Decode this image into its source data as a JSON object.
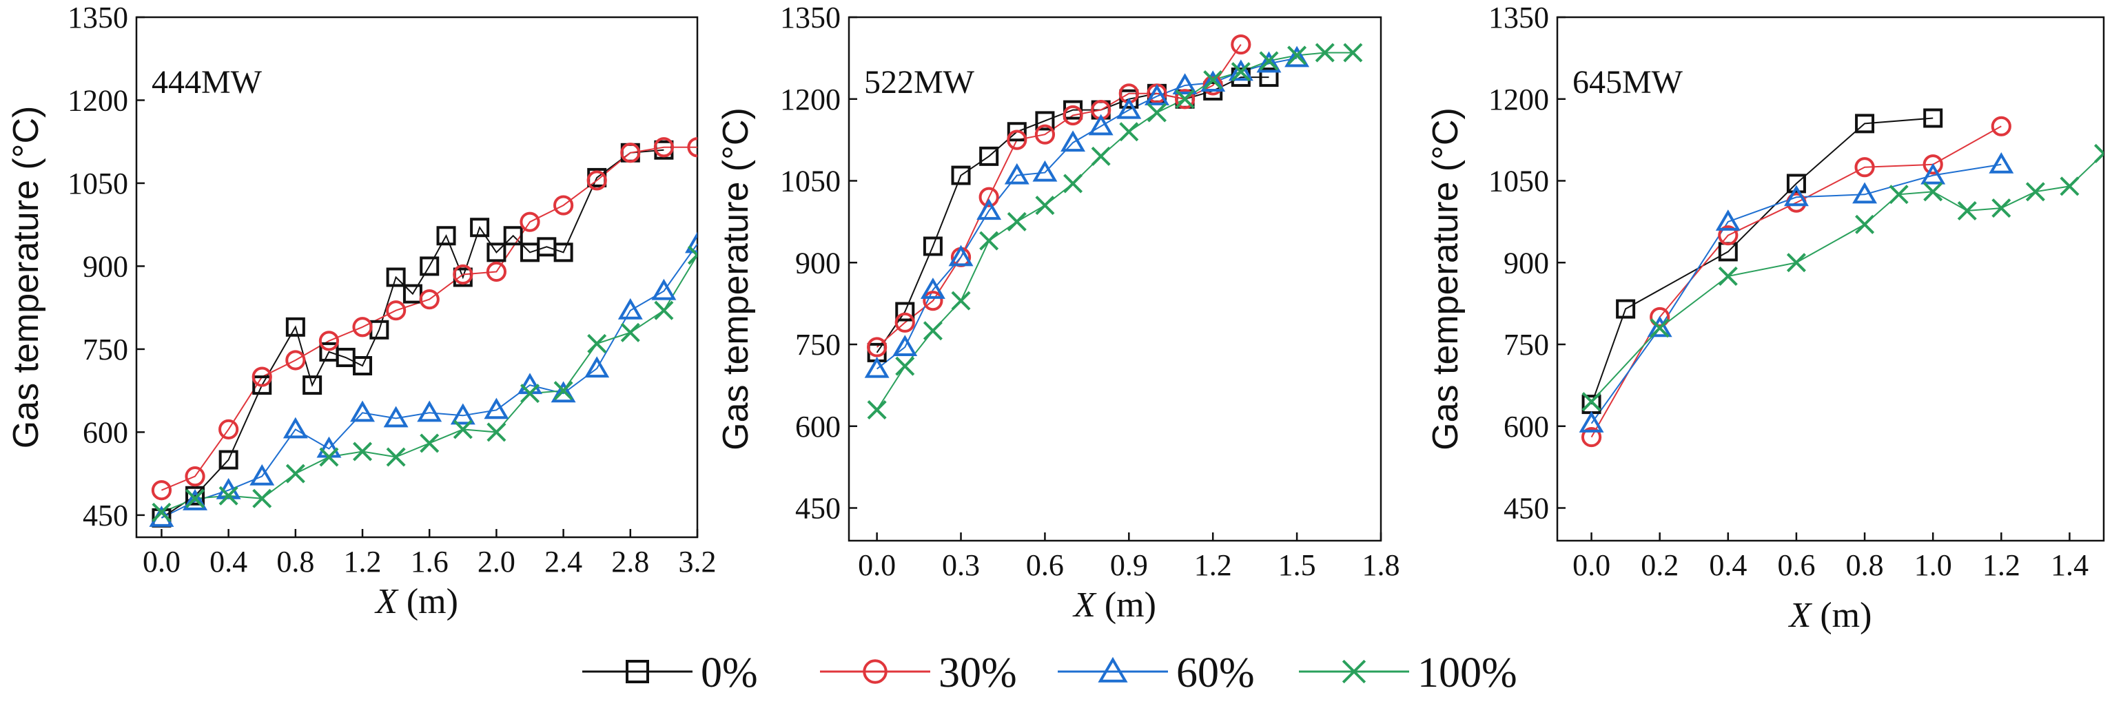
{
  "legend": [
    {
      "key": "p0",
      "label": "0%",
      "color": "#111111",
      "marker": "square-marker"
    },
    {
      "key": "p30",
      "label": "30%",
      "color": "#e0363c",
      "marker": "circle-marker"
    },
    {
      "key": "p60",
      "label": "60%",
      "color": "#1e6fd1",
      "marker": "triangle-marker"
    },
    {
      "key": "p100",
      "label": "100%",
      "color": "#2aa05c",
      "marker": "cross-marker"
    }
  ],
  "chart_data": [
    {
      "type": "line",
      "panel_label": "444MW",
      "ylabel": "Gas temperature (°C)",
      "xlabel_var": "X",
      "xlabel_unit": "(m)",
      "xlim": [
        -0.15,
        3.2
      ],
      "ylim": [
        410,
        1350
      ],
      "xticks": [
        0.0,
        0.4,
        0.8,
        1.2,
        1.6,
        2.0,
        2.4,
        2.8,
        3.2
      ],
      "xtick_labels": [
        "0.0",
        "0.4",
        "0.8",
        "1.2",
        "1.6",
        "2.0",
        "2.4",
        "2.8",
        "3.2"
      ],
      "yticks": [
        450,
        600,
        750,
        900,
        1050,
        1200,
        1350
      ],
      "ytick_labels": [
        "450",
        "600",
        "750",
        "900",
        "1050",
        "1200",
        "1350"
      ],
      "series": [
        {
          "key": "p0",
          "name": "0%",
          "x": [
            0.0,
            0.2,
            0.4,
            0.6,
            0.8,
            0.9,
            1.0,
            1.1,
            1.2,
            1.3,
            1.4,
            1.5,
            1.6,
            1.7,
            1.8,
            1.9,
            2.0,
            2.1,
            2.2,
            2.3,
            2.4,
            2.6,
            2.8,
            3.0
          ],
          "y": [
            445,
            485,
            550,
            685,
            790,
            685,
            745,
            735,
            720,
            785,
            880,
            850,
            900,
            955,
            880,
            970,
            925,
            955,
            925,
            935,
            925,
            1060,
            1105,
            1110
          ]
        },
        {
          "key": "p30",
          "name": "30%",
          "x": [
            0.0,
            0.2,
            0.4,
            0.6,
            0.8,
            1.0,
            1.2,
            1.4,
            1.6,
            1.8,
            2.0,
            2.2,
            2.4,
            2.6,
            2.8,
            3.0,
            3.2
          ],
          "y": [
            495,
            520,
            605,
            700,
            730,
            765,
            790,
            820,
            840,
            885,
            890,
            980,
            1010,
            1055,
            1105,
            1115,
            1115
          ]
        },
        {
          "key": "p60",
          "name": "60%",
          "x": [
            0.0,
            0.2,
            0.4,
            0.6,
            0.8,
            1.0,
            1.2,
            1.4,
            1.6,
            1.8,
            2.0,
            2.2,
            2.4,
            2.6,
            2.8,
            3.0,
            3.2
          ],
          "y": [
            445,
            475,
            495,
            520,
            605,
            570,
            635,
            625,
            635,
            630,
            640,
            685,
            670,
            715,
            820,
            855,
            940
          ]
        },
        {
          "key": "p100",
          "name": "100%",
          "x": [
            0.0,
            0.2,
            0.4,
            0.6,
            0.8,
            1.0,
            1.2,
            1.4,
            1.6,
            1.8,
            2.0,
            2.2,
            2.4,
            2.6,
            2.8,
            3.0,
            3.2
          ],
          "y": [
            455,
            480,
            485,
            480,
            525,
            555,
            565,
            555,
            580,
            605,
            600,
            670,
            675,
            760,
            780,
            820,
            920
          ]
        }
      ]
    },
    {
      "type": "line",
      "panel_label": "522MW",
      "ylabel": "Gas temperature (°C)",
      "xlabel_var": "X",
      "xlabel_unit": "(m)",
      "xlim": [
        -0.1,
        1.8
      ],
      "ylim": [
        390,
        1350
      ],
      "xticks": [
        0.0,
        0.3,
        0.6,
        0.9,
        1.2,
        1.5,
        1.8
      ],
      "xtick_labels": [
        "0.0",
        "0.3",
        "0.6",
        "0.9",
        "1.2",
        "1.5",
        "1.8"
      ],
      "yticks": [
        450,
        600,
        750,
        900,
        1050,
        1200,
        1350
      ],
      "ytick_labels": [
        "450",
        "600",
        "750",
        "900",
        "1050",
        "1200",
        "1350"
      ],
      "series": [
        {
          "key": "p0",
          "name": "0%",
          "x": [
            0.0,
            0.1,
            0.2,
            0.3,
            0.4,
            0.5,
            0.6,
            0.7,
            0.8,
            0.9,
            1.0,
            1.1,
            1.2,
            1.3,
            1.4
          ],
          "y": [
            735,
            810,
            930,
            1060,
            1095,
            1140,
            1160,
            1180,
            1180,
            1200,
            1210,
            1200,
            1215,
            1240,
            1240
          ]
        },
        {
          "key": "p30",
          "name": "30%",
          "x": [
            0.0,
            0.1,
            0.2,
            0.3,
            0.4,
            0.5,
            0.6,
            0.7,
            0.8,
            0.9,
            1.0,
            1.1,
            1.2,
            1.3
          ],
          "y": [
            745,
            790,
            830,
            910,
            1020,
            1125,
            1135,
            1170,
            1180,
            1210,
            1210,
            1200,
            1225,
            1300
          ]
        },
        {
          "key": "p60",
          "name": "60%",
          "x": [
            0.0,
            0.1,
            0.2,
            0.3,
            0.4,
            0.5,
            0.6,
            0.7,
            0.8,
            0.9,
            1.0,
            1.1,
            1.2,
            1.3,
            1.4,
            1.5
          ],
          "y": [
            705,
            745,
            850,
            910,
            995,
            1060,
            1065,
            1120,
            1150,
            1180,
            1205,
            1225,
            1230,
            1250,
            1265,
            1275
          ]
        },
        {
          "key": "p100",
          "name": "100%",
          "x": [
            0.0,
            0.1,
            0.2,
            0.3,
            0.4,
            0.5,
            0.6,
            0.7,
            0.8,
            0.9,
            1.0,
            1.1,
            1.2,
            1.3,
            1.4,
            1.5,
            1.6,
            1.7
          ],
          "y": [
            630,
            710,
            775,
            830,
            940,
            975,
            1005,
            1045,
            1095,
            1140,
            1175,
            1200,
            1235,
            1250,
            1270,
            1280,
            1285,
            1285
          ]
        }
      ]
    },
    {
      "type": "line",
      "panel_label": "645MW",
      "ylabel": "Gas temperature (°C)",
      "xlabel_var": "X",
      "xlabel_unit": "(m)",
      "xlim": [
        -0.1,
        1.5
      ],
      "ylim": [
        390,
        1350
      ],
      "xticks": [
        0.0,
        0.2,
        0.4,
        0.6,
        0.8,
        1.0,
        1.2,
        1.4
      ],
      "xtick_labels": [
        "0.0",
        "0.2",
        "0.4",
        "0.6",
        "0.8",
        "1.0",
        "1.2",
        "1.4"
      ],
      "yticks": [
        450,
        600,
        750,
        900,
        1050,
        1200,
        1350
      ],
      "ytick_labels": [
        "450",
        "600",
        "750",
        "900",
        "1050",
        "1200",
        "1350"
      ],
      "series": [
        {
          "key": "p0",
          "name": "0%",
          "x": [
            0.0,
            0.1,
            0.4,
            0.6,
            0.8,
            1.0
          ],
          "y": [
            640,
            815,
            920,
            1045,
            1155,
            1165
          ]
        },
        {
          "key": "p30",
          "name": "30%",
          "x": [
            0.0,
            0.2,
            0.4,
            0.6,
            0.8,
            1.0,
            1.2
          ],
          "y": [
            580,
            800,
            950,
            1010,
            1075,
            1080,
            1150
          ]
        },
        {
          "key": "p60",
          "name": "60%",
          "x": [
            0.0,
            0.2,
            0.4,
            0.6,
            0.8,
            1.0,
            1.2
          ],
          "y": [
            605,
            780,
            975,
            1020,
            1025,
            1060,
            1080
          ]
        },
        {
          "key": "p100",
          "name": "100%",
          "x": [
            0.0,
            0.2,
            0.4,
            0.6,
            0.8,
            0.9,
            1.0,
            1.1,
            1.2,
            1.3,
            1.4,
            1.5
          ],
          "y": [
            645,
            780,
            875,
            900,
            970,
            1025,
            1030,
            995,
            1000,
            1030,
            1040,
            1100
          ]
        }
      ]
    }
  ]
}
